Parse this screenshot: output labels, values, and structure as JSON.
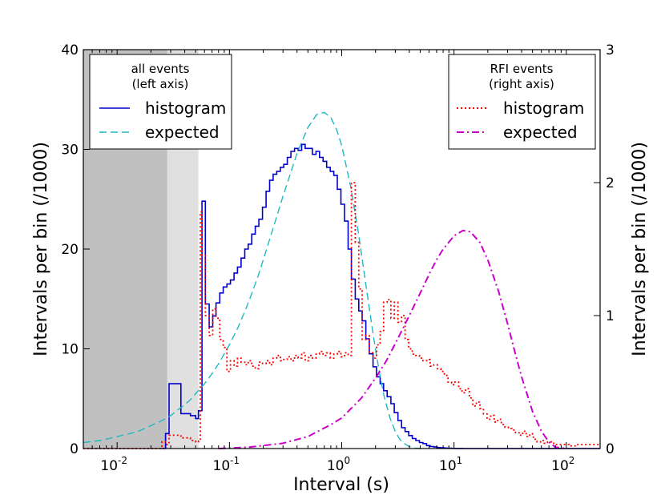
{
  "chart_data": {
    "type": "line",
    "x_scale": "log",
    "xlim": [
      0.005,
      200
    ],
    "xlabel": "Interval (s)",
    "ylabel_left": "Intervals per bin (/1000)",
    "ylabel_right": "Intervals per bin (/1000)",
    "ylim_left": [
      0,
      40
    ],
    "ylim_right": [
      0,
      3
    ],
    "x_ticks": [
      {
        "value": 0.01,
        "base": "10",
        "exp": "-2"
      },
      {
        "value": 0.1,
        "base": "10",
        "exp": "-1"
      },
      {
        "value": 1,
        "base": "10",
        "exp": "0"
      },
      {
        "value": 10,
        "base": "10",
        "exp": "1"
      },
      {
        "value": 100,
        "base": "10",
        "exp": "2"
      }
    ],
    "y_ticks_left": [
      {
        "value": 0,
        "label": "0"
      },
      {
        "value": 10,
        "label": "10"
      },
      {
        "value": 20,
        "label": "20"
      },
      {
        "value": 30,
        "label": "30"
      },
      {
        "value": 40,
        "label": "40"
      }
    ],
    "y_ticks_right": [
      {
        "value": 0,
        "label": "0"
      },
      {
        "value": 1,
        "label": "1"
      },
      {
        "value": 2,
        "label": "2"
      },
      {
        "value": 3,
        "label": "3"
      }
    ],
    "shaded_regions": [
      {
        "x_from": 0.005,
        "x_to": 0.028,
        "color": "#c0c0c0"
      },
      {
        "x_from": 0.028,
        "x_to": 0.053,
        "color": "#e0e0e0"
      }
    ],
    "legends": [
      {
        "title_line1": "all events",
        "title_line2": "(left axis)",
        "position": "top-left",
        "entries": [
          {
            "label": "histogram",
            "series": "all_hist"
          },
          {
            "label": "expected",
            "series": "all_expected"
          }
        ]
      },
      {
        "title_line1": "RFI events",
        "title_line2": "(right axis)",
        "position": "top-right",
        "entries": [
          {
            "label": "histogram",
            "series": "rfi_hist"
          },
          {
            "label": "expected",
            "series": "rfi_expected"
          }
        ]
      }
    ],
    "series": [
      {
        "id": "all_hist",
        "name": "histogram",
        "axis": "left",
        "kind": "step",
        "color": "#0000cc",
        "dash": "",
        "x": [
          0.025,
          0.027,
          0.029,
          0.037,
          0.045,
          0.05,
          0.053,
          0.057,
          0.061,
          0.066,
          0.071,
          0.076,
          0.082,
          0.088,
          0.095,
          0.102,
          0.11,
          0.118,
          0.127,
          0.137,
          0.147,
          0.158,
          0.17,
          0.183,
          0.197,
          0.212,
          0.228,
          0.245,
          0.264,
          0.284,
          0.305,
          0.328,
          0.353,
          0.38,
          0.409,
          0.44,
          0.473,
          0.509,
          0.548,
          0.59,
          0.634,
          0.682,
          0.734,
          0.79,
          0.85,
          0.914,
          0.984,
          1.06,
          1.14,
          1.22,
          1.32,
          1.42,
          1.52,
          1.64,
          1.76,
          1.9,
          2.04,
          2.2,
          2.36,
          2.54,
          2.74,
          2.94,
          3.17,
          3.41,
          3.67,
          3.95,
          4.25,
          4.57,
          4.92,
          5.29,
          5.7,
          6.13,
          6.6,
          7.1,
          7.64,
          8.22,
          8.84,
          9.51,
          10.2,
          11.0,
          12.0,
          14.0,
          17.0,
          22.0,
          30.0,
          40.0
        ],
        "values": [
          0,
          1.5,
          6.5,
          3.5,
          3.3,
          3.0,
          3.8,
          24.8,
          14.5,
          12.2,
          13.3,
          14.6,
          15.6,
          16.2,
          16.5,
          16.9,
          17.6,
          18.2,
          19.1,
          20.0,
          20.5,
          21.5,
          22.3,
          23.0,
          24.2,
          25.8,
          26.9,
          27.5,
          27.8,
          28.2,
          28.5,
          29.2,
          29.8,
          30.1,
          29.9,
          30.5,
          30.1,
          30.1,
          29.5,
          29.8,
          29.2,
          28.8,
          28.2,
          27.8,
          27.4,
          26.0,
          24.5,
          22.8,
          20.0,
          17.0,
          15.0,
          13.8,
          12.8,
          11.0,
          9.5,
          8.2,
          7.2,
          6.5,
          5.8,
          5.2,
          4.5,
          3.6,
          2.8,
          2.1,
          1.7,
          1.3,
          1.0,
          0.8,
          0.6,
          0.5,
          0.3,
          0.2,
          0.15,
          0.1,
          0.08,
          0.05,
          0.03,
          0.02,
          0.01,
          0.01,
          0.0,
          0.0,
          0.0,
          0.0,
          0.0,
          0.0
        ]
      },
      {
        "id": "all_expected",
        "name": "expected",
        "axis": "left",
        "kind": "line",
        "color": "#20b8c0",
        "dash": "9,5",
        "x": [
          0.005,
          0.007,
          0.01,
          0.013,
          0.016,
          0.02,
          0.025,
          0.03,
          0.035,
          0.04,
          0.045,
          0.05,
          0.06,
          0.07,
          0.08,
          0.09,
          0.1,
          0.12,
          0.14,
          0.16,
          0.18,
          0.2,
          0.25,
          0.3,
          0.35,
          0.4,
          0.5,
          0.6,
          0.7,
          0.8,
          0.9,
          1.0,
          1.2,
          1.4,
          1.6,
          1.8,
          2.0,
          2.2,
          2.4,
          2.7,
          3.0,
          3.3,
          3.6,
          4.0,
          4.5,
          5.0
        ],
        "values": [
          0.6,
          0.8,
          1.2,
          1.5,
          1.8,
          2.3,
          2.8,
          3.3,
          3.9,
          4.4,
          4.9,
          5.5,
          6.5,
          7.5,
          8.5,
          9.5,
          10.4,
          12.2,
          14.0,
          15.7,
          17.3,
          18.9,
          22.4,
          25.3,
          27.6,
          29.6,
          32.2,
          33.5,
          33.7,
          33.2,
          32.0,
          30.4,
          26.3,
          21.8,
          17.3,
          13.3,
          9.9,
          7.2,
          5.1,
          3.0,
          1.7,
          0.9,
          0.5,
          0.2,
          0.05,
          0.0
        ]
      },
      {
        "id": "rfi_hist",
        "name": "histogram",
        "axis": "right",
        "kind": "step",
        "color": "#ff0000",
        "dash": "2,3",
        "x": [
          0.005,
          0.025,
          0.027,
          0.029,
          0.037,
          0.045,
          0.05,
          0.053,
          0.055,
          0.057,
          0.061,
          0.066,
          0.071,
          0.076,
          0.082,
          0.088,
          0.095,
          0.102,
          0.11,
          0.118,
          0.127,
          0.137,
          0.147,
          0.158,
          0.17,
          0.183,
          0.197,
          0.212,
          0.228,
          0.245,
          0.264,
          0.284,
          0.305,
          0.328,
          0.353,
          0.38,
          0.409,
          0.44,
          0.473,
          0.509,
          0.548,
          0.59,
          0.634,
          0.682,
          0.734,
          0.79,
          0.85,
          0.914,
          0.984,
          1.06,
          1.14,
          1.22,
          1.32,
          1.42,
          1.52,
          1.64,
          1.76,
          1.9,
          2.04,
          2.2,
          2.36,
          2.54,
          2.74,
          2.94,
          3.17,
          3.41,
          3.67,
          3.95,
          4.25,
          4.57,
          4.92,
          5.29,
          5.7,
          6.13,
          6.6,
          7.1,
          7.64,
          8.22,
          8.84,
          9.51,
          10.2,
          11.0,
          11.8,
          12.7,
          13.7,
          14.7,
          15.8,
          17.0,
          18.3,
          19.7,
          21.2,
          22.8,
          24.5,
          26.4,
          28.4,
          30.5,
          32.8,
          35.3,
          38.0,
          40.9,
          44.0,
          47.3,
          50.9,
          54.8,
          59.0,
          63.4,
          68.2,
          73.4,
          79.0,
          85.0,
          91.4,
          98.4,
          106,
          120,
          140,
          170,
          200
        ],
        "values": [
          0.0,
          0.05,
          0.03,
          0.1,
          0.08,
          0.06,
          0.05,
          0.07,
          1.78,
          1.45,
          1.0,
          0.85,
          1.05,
          0.98,
          0.82,
          0.76,
          0.58,
          0.66,
          0.62,
          0.68,
          0.65,
          0.63,
          0.66,
          0.62,
          0.6,
          0.65,
          0.64,
          0.66,
          0.63,
          0.68,
          0.7,
          0.66,
          0.67,
          0.69,
          0.66,
          0.7,
          0.68,
          0.72,
          0.66,
          0.7,
          0.68,
          0.71,
          0.73,
          0.7,
          0.72,
          0.68,
          0.71,
          0.73,
          0.69,
          0.72,
          0.7,
          2.0,
          1.55,
          1.2,
          0.82,
          0.85,
          0.72,
          0.68,
          0.78,
          0.88,
          1.1,
          1.12,
          0.98,
          1.1,
          0.95,
          1.0,
          0.82,
          0.75,
          0.71,
          0.7,
          0.68,
          0.66,
          0.67,
          0.62,
          0.63,
          0.6,
          0.58,
          0.55,
          0.5,
          0.48,
          0.5,
          0.45,
          0.42,
          0.45,
          0.38,
          0.32,
          0.35,
          0.3,
          0.26,
          0.22,
          0.25,
          0.2,
          0.22,
          0.18,
          0.16,
          0.15,
          0.14,
          0.12,
          0.1,
          0.13,
          0.09,
          0.11,
          0.07,
          0.05,
          0.06,
          0.04,
          0.05,
          0.04,
          0.03,
          0.03,
          0.03,
          0.03,
          0.02,
          0.03,
          0.03,
          0.03,
          0.03
        ]
      },
      {
        "id": "rfi_expected",
        "name": "expected",
        "axis": "right",
        "kind": "line",
        "color": "#cc00cc",
        "dash": "9,4,2,4",
        "x": [
          0.08,
          0.15,
          0.3,
          0.5,
          0.8,
          1.0,
          1.5,
          2.0,
          2.5,
          3.0,
          4.0,
          5.0,
          6.0,
          7.0,
          8.0,
          10.0,
          12.0,
          14.0,
          17.0,
          20.0,
          25.0,
          30.0,
          35.0,
          40.0,
          50.0,
          60.0,
          70.0,
          80.0,
          100.0
        ],
        "values": [
          0.0,
          0.01,
          0.04,
          0.09,
          0.18,
          0.23,
          0.38,
          0.53,
          0.66,
          0.79,
          1.0,
          1.17,
          1.31,
          1.42,
          1.5,
          1.6,
          1.64,
          1.63,
          1.55,
          1.42,
          1.18,
          0.94,
          0.72,
          0.54,
          0.28,
          0.13,
          0.05,
          0.01,
          0.0
        ]
      }
    ]
  }
}
